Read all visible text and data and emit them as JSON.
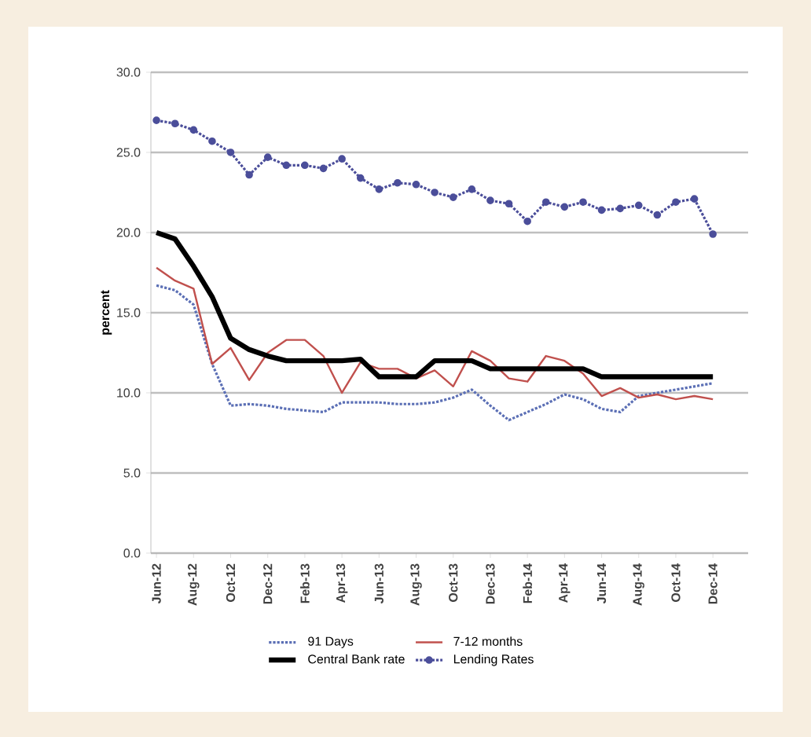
{
  "chart_data": {
    "type": "line",
    "ylabel": "percent",
    "categories": [
      "Jun-12",
      null,
      "Aug-12",
      null,
      "Oct-12",
      null,
      "Dec-12",
      null,
      "Feb-13",
      null,
      "Apr-13",
      null,
      "Jun-13",
      null,
      "Aug-13",
      null,
      "Oct-13",
      null,
      "Dec-13",
      null,
      "Feb-14",
      null,
      "Apr-14",
      null,
      "Jun-14",
      null,
      "Aug-14",
      null,
      "Oct-14",
      null,
      "Dec-14"
    ],
    "series": [
      {
        "name": "91 Days",
        "color": "#5b6fb5",
        "line_style": "dotted",
        "marker": "none",
        "values": [
          16.7,
          16.4,
          15.5,
          11.8,
          9.2,
          9.3,
          9.2,
          9.0,
          8.9,
          8.8,
          9.4,
          9.4,
          9.4,
          9.3,
          9.3,
          9.4,
          9.7,
          10.2,
          9.2,
          8.3,
          8.8,
          9.3,
          9.9,
          9.6,
          9.0,
          8.8,
          9.8,
          10.0,
          10.2,
          10.4,
          10.6
        ]
      },
      {
        "name": "7-12 months",
        "color": "#c0504d",
        "line_style": "solid",
        "marker": "none",
        "values": [
          17.8,
          17.0,
          16.5,
          11.8,
          12.8,
          10.8,
          12.5,
          13.3,
          13.3,
          12.3,
          10.0,
          11.9,
          11.5,
          11.5,
          10.9,
          11.4,
          10.4,
          12.6,
          12.0,
          10.9,
          10.7,
          12.3,
          12.0,
          11.2,
          9.8,
          10.3,
          9.7,
          9.9,
          9.6,
          9.8,
          9.6
        ]
      },
      {
        "name": "Central Bank rate",
        "color": "#000000",
        "line_style": "solid",
        "marker": "none",
        "values": [
          20.0,
          19.6,
          17.9,
          16.0,
          13.4,
          12.7,
          12.3,
          12.0,
          12.0,
          12.0,
          12.0,
          12.1,
          11.0,
          11.0,
          11.0,
          12.0,
          12.0,
          12.0,
          11.5,
          11.5,
          11.5,
          11.5,
          11.5,
          11.5,
          11.0,
          11.0,
          11.0,
          11.0,
          11.0,
          11.0,
          11.0
        ]
      },
      {
        "name": "Lending Rates",
        "color": "#4b4e9a",
        "line_style": "dotted",
        "marker": "circle",
        "values": [
          27.0,
          26.8,
          26.4,
          25.7,
          25.0,
          23.6,
          24.7,
          24.2,
          24.2,
          24.0,
          24.6,
          23.4,
          22.7,
          23.1,
          23.0,
          22.5,
          22.2,
          22.7,
          22.0,
          21.8,
          20.7,
          21.9,
          21.6,
          21.9,
          21.4,
          21.5,
          21.7,
          21.1,
          21.9,
          22.1,
          19.9
        ]
      }
    ],
    "ylim": [
      0,
      30
    ],
    "yticks": [
      {
        "value": 0,
        "label": "0.0"
      },
      {
        "value": 5,
        "label": "5.0"
      },
      {
        "value": 10,
        "label": "10.0"
      },
      {
        "value": 15,
        "label": "15.0"
      },
      {
        "value": 20,
        "label": "20.0"
      },
      {
        "value": 25,
        "label": "25.0"
      },
      {
        "value": 30,
        "label": "30.0"
      }
    ],
    "grid": "y",
    "legend": "bottom"
  }
}
